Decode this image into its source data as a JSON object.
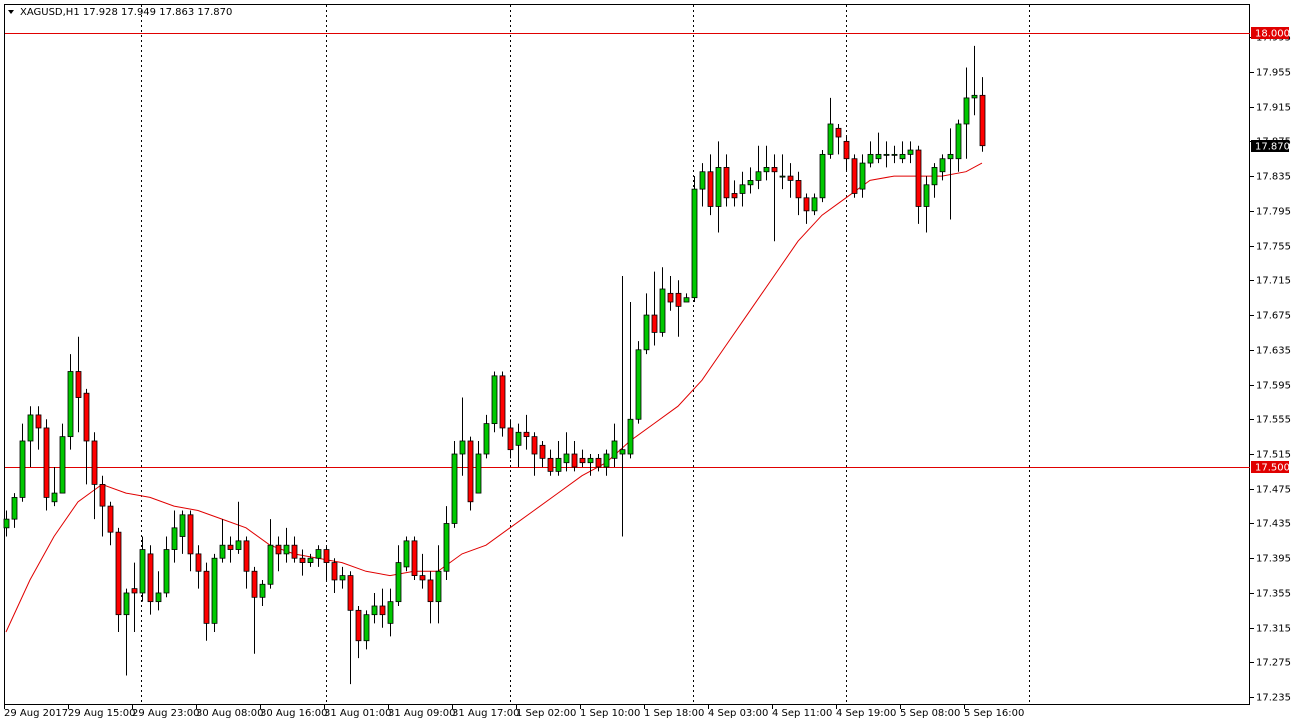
{
  "chart_data": {
    "type": "candlestick",
    "title": "XAGUSD,H1 17.928 17.949 17.863 17.870",
    "categories": [
      "29 Aug 2017",
      null,
      null,
      null,
      null,
      null,
      null,
      null,
      "29 Aug 15:00",
      null,
      null,
      null,
      null,
      null,
      null,
      null,
      "29 Aug 23:00",
      null,
      null,
      null,
      null,
      null,
      null,
      null,
      "30 Aug 08:00",
      null,
      null,
      null,
      null,
      null,
      null,
      null,
      "30 Aug 16:00",
      null,
      null,
      null,
      null,
      null,
      null,
      null,
      "31 Aug 01:00",
      null,
      null,
      null,
      null,
      null,
      null,
      null,
      "31 Aug 09:00",
      null,
      null,
      null,
      null,
      null,
      null,
      null,
      "31 Aug 17:00",
      null,
      null,
      null,
      null,
      null,
      null,
      null,
      "1 Sep 02:00",
      null,
      null,
      null,
      null,
      null,
      null,
      null,
      "1 Sep 10:00",
      null,
      null,
      null,
      null,
      null,
      null,
      null,
      "1 Sep 18:00",
      null,
      null,
      null,
      null,
      null,
      null,
      null,
      "4 Sep 03:00",
      null,
      null,
      null,
      null,
      null,
      null,
      null,
      "4 Sep 11:00",
      null,
      null,
      null,
      null,
      null,
      null,
      null,
      "4 Sep 19:00",
      null,
      null,
      null,
      null,
      null,
      null,
      null,
      "5 Sep 08:00",
      null,
      null,
      null,
      null,
      null,
      null,
      null,
      "5 Sep 16:00",
      null,
      null
    ],
    "open": [
      17.43,
      17.44,
      17.465,
      17.53,
      17.56,
      17.545,
      17.46,
      17.47,
      17.535,
      17.61,
      17.585,
      17.53,
      17.48,
      17.455,
      17.425,
      17.33,
      17.36,
      17.355,
      17.4,
      17.345,
      17.355,
      17.405,
      17.42,
      17.445,
      17.4,
      17.38,
      17.32,
      17.395,
      17.41,
      17.405,
      17.415,
      17.38,
      17.35,
      17.365,
      17.41,
      17.4,
      17.41,
      17.395,
      17.39,
      17.395,
      17.405,
      17.39,
      17.37,
      17.375,
      17.335,
      17.3,
      17.33,
      17.34,
      17.32,
      17.345,
      17.385,
      17.415,
      17.375,
      17.37,
      17.345,
      17.38,
      17.435,
      17.515,
      17.53,
      17.47,
      17.515,
      17.55,
      17.605,
      17.545,
      17.525,
      17.54,
      17.535,
      17.525,
      17.51,
      17.495,
      17.505,
      17.515,
      17.51,
      17.505,
      17.51,
      17.5,
      17.51,
      17.515,
      17.515,
      17.555,
      17.635,
      17.675,
      17.655,
      17.7,
      17.7,
      17.69,
      17.695,
      17.82,
      17.84,
      17.8,
      17.845,
      17.815,
      17.815,
      17.825,
      17.83,
      17.84,
      17.845,
      17.835,
      17.835,
      17.83,
      17.81,
      17.795,
      17.81,
      17.86,
      17.89,
      17.875,
      17.855,
      17.82,
      17.85,
      17.855,
      17.86,
      17.86,
      17.855,
      17.86,
      17.865,
      17.8,
      17.825,
      17.84,
      17.855,
      17.855,
      17.895,
      17.925,
      17.928
    ],
    "high": [
      17.45,
      17.47,
      17.55,
      17.57,
      17.57,
      17.555,
      17.5,
      17.55,
      17.63,
      17.65,
      17.59,
      17.54,
      17.49,
      17.46,
      17.43,
      17.36,
      17.39,
      17.42,
      17.41,
      17.38,
      17.42,
      17.45,
      17.45,
      17.45,
      17.41,
      17.39,
      17.4,
      17.44,
      17.42,
      17.46,
      17.42,
      17.385,
      17.37,
      17.44,
      17.42,
      17.43,
      17.42,
      17.405,
      17.4,
      17.41,
      17.41,
      17.395,
      17.385,
      17.38,
      17.34,
      17.335,
      17.355,
      17.36,
      17.36,
      17.41,
      17.42,
      17.42,
      17.4,
      17.38,
      17.41,
      17.455,
      17.53,
      17.58,
      17.535,
      17.53,
      17.56,
      17.61,
      17.61,
      17.555,
      17.55,
      17.56,
      17.54,
      17.53,
      17.52,
      17.53,
      17.54,
      17.53,
      17.52,
      17.515,
      17.515,
      17.52,
      17.55,
      17.72,
      17.69,
      17.645,
      17.7,
      17.725,
      17.73,
      17.72,
      17.715,
      17.7,
      17.835,
      17.85,
      17.86,
      17.875,
      17.86,
      17.83,
      17.84,
      17.845,
      17.87,
      17.87,
      17.86,
      17.86,
      17.85,
      17.84,
      17.815,
      17.815,
      17.865,
      17.925,
      17.895,
      17.88,
      17.86,
      17.86,
      17.875,
      17.885,
      17.875,
      17.87,
      17.875,
      17.875,
      17.87,
      17.835,
      17.85,
      17.86,
      17.89,
      17.9,
      17.96,
      17.985,
      17.949
    ],
    "low": [
      17.42,
      17.43,
      17.46,
      17.5,
      17.52,
      17.45,
      17.455,
      17.47,
      17.52,
      17.54,
      17.48,
      17.44,
      17.42,
      17.41,
      17.31,
      17.26,
      17.31,
      17.345,
      17.33,
      17.335,
      17.35,
      17.39,
      17.4,
      17.38,
      17.36,
      17.3,
      17.31,
      17.39,
      17.39,
      17.4,
      17.36,
      17.285,
      17.34,
      17.36,
      17.38,
      17.39,
      17.39,
      17.375,
      17.385,
      17.385,
      17.37,
      17.355,
      17.36,
      17.25,
      17.28,
      17.29,
      17.32,
      17.315,
      17.305,
      17.34,
      17.38,
      17.37,
      17.36,
      17.32,
      17.32,
      17.37,
      17.43,
      17.49,
      17.45,
      17.47,
      17.51,
      17.54,
      17.535,
      17.51,
      17.5,
      17.52,
      17.49,
      17.5,
      17.49,
      17.49,
      17.495,
      17.495,
      17.5,
      17.49,
      17.495,
      17.49,
      17.5,
      17.42,
      17.51,
      17.55,
      17.63,
      17.64,
      17.65,
      17.68,
      17.65,
      17.69,
      17.69,
      17.8,
      17.79,
      17.77,
      17.8,
      17.8,
      17.8,
      17.815,
      17.82,
      17.83,
      17.76,
      17.82,
      17.81,
      17.79,
      17.78,
      17.79,
      17.805,
      17.855,
      17.86,
      17.84,
      17.81,
      17.81,
      17.845,
      17.85,
      17.845,
      17.85,
      17.85,
      17.85,
      17.78,
      17.77,
      17.81,
      17.83,
      17.785,
      17.84,
      17.855,
      17.905,
      17.863
    ],
    "close": [
      17.44,
      17.465,
      17.53,
      17.56,
      17.545,
      17.465,
      17.47,
      17.535,
      17.61,
      17.58,
      17.53,
      17.48,
      17.455,
      17.425,
      17.33,
      17.355,
      17.355,
      17.405,
      17.345,
      17.355,
      17.405,
      17.43,
      17.445,
      17.4,
      17.38,
      17.32,
      17.395,
      17.41,
      17.405,
      17.415,
      17.38,
      17.35,
      17.365,
      17.41,
      17.4,
      17.41,
      17.395,
      17.39,
      17.395,
      17.405,
      17.39,
      17.37,
      17.375,
      17.335,
      17.3,
      17.33,
      17.34,
      17.33,
      17.345,
      17.39,
      17.415,
      17.375,
      17.37,
      17.345,
      17.38,
      17.435,
      17.515,
      17.53,
      17.46,
      17.515,
      17.55,
      17.605,
      17.545,
      17.52,
      17.54,
      17.535,
      17.515,
      17.51,
      17.495,
      17.51,
      17.515,
      17.5,
      17.505,
      17.51,
      17.5,
      17.515,
      17.53,
      17.52,
      17.555,
      17.635,
      17.675,
      17.655,
      17.705,
      17.69,
      17.685,
      17.695,
      17.82,
      17.84,
      17.8,
      17.845,
      17.81,
      17.81,
      17.825,
      17.83,
      17.84,
      17.845,
      17.84,
      17.835,
      17.83,
      17.81,
      17.795,
      17.81,
      17.86,
      17.895,
      17.88,
      17.855,
      17.815,
      17.85,
      17.86,
      17.86,
      17.86,
      17.86,
      17.86,
      17.865,
      17.8,
      17.825,
      17.845,
      17.855,
      17.86,
      17.895,
      17.925,
      17.928,
      17.87
    ],
    "up_color": "#00c800",
    "down_color": "#ff0000",
    "wick_color": "#000000",
    "line": {
      "color": "#e00000",
      "x": [
        0,
        3,
        6,
        9,
        12,
        15,
        18,
        21,
        24,
        27,
        30,
        33,
        36,
        39,
        42,
        45,
        48,
        51,
        54,
        57,
        60,
        63,
        66,
        69,
        72,
        75,
        78,
        81,
        84,
        87,
        90,
        93,
        96,
        99,
        102,
        105,
        108,
        111,
        114,
        117,
        120,
        122
      ],
      "values": [
        17.31,
        17.37,
        17.42,
        17.46,
        17.48,
        17.47,
        17.465,
        17.455,
        17.45,
        17.44,
        17.43,
        17.41,
        17.4,
        17.395,
        17.39,
        17.38,
        17.375,
        17.38,
        17.38,
        17.4,
        17.41,
        17.43,
        17.45,
        17.47,
        17.49,
        17.505,
        17.53,
        17.55,
        17.57,
        17.6,
        17.64,
        17.68,
        17.72,
        17.76,
        17.79,
        17.81,
        17.83,
        17.835,
        17.835,
        17.835,
        17.84,
        17.85
      ]
    },
    "hlines": [
      {
        "value": 18.0,
        "label": "18.000",
        "color": "#e00000"
      },
      {
        "value": 17.5,
        "label": "17.500",
        "color": "#e00000"
      }
    ],
    "price_label": {
      "value": 17.87,
      "label": "17.870",
      "color": "#000000"
    },
    "ylim": [
      17.226,
      18.032
    ],
    "yticks": [
      17.235,
      17.275,
      17.315,
      17.355,
      17.395,
      17.435,
      17.475,
      17.515,
      17.555,
      17.595,
      17.635,
      17.675,
      17.715,
      17.755,
      17.795,
      17.835,
      17.875,
      17.915,
      17.955,
      17.995
    ]
  }
}
